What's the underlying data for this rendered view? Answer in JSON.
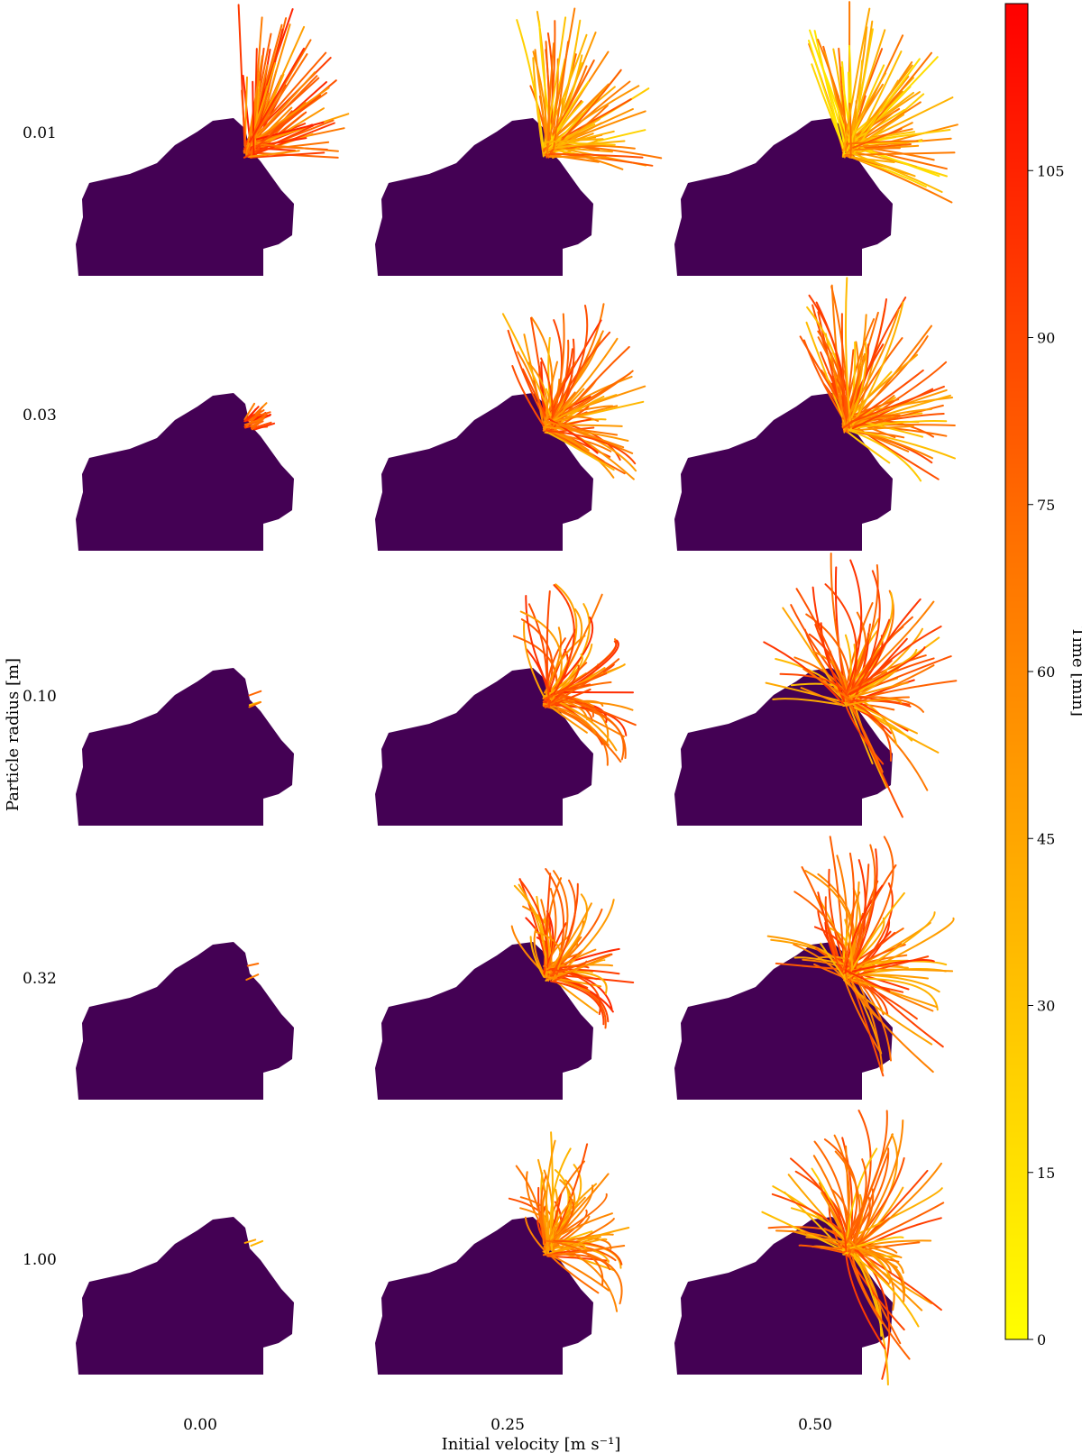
{
  "chart_data": {
    "type": "scatter",
    "title": "",
    "xlabel": "Initial velocity [m s⁻¹]",
    "ylabel": "Particle radius [m]",
    "column_labels": [
      "0.00",
      "0.25",
      "0.50"
    ],
    "row_labels": [
      "0.01",
      "0.03",
      "0.10",
      "0.32",
      "1.00"
    ],
    "colorbar": {
      "label": "Time [min]",
      "ticks": [
        "0",
        "15",
        "30",
        "45",
        "60",
        "75",
        "90",
        "105"
      ],
      "range": [
        0,
        120
      ],
      "colormap": [
        "#ffff00",
        "#ffd000",
        "#ffa000",
        "#ff7000",
        "#ff3800",
        "#ff0000"
      ]
    },
    "body_color": "#440154",
    "panels": [
      {
        "radius": "0.01",
        "velocity": "0.00",
        "spread": 1.0,
        "length": 1.0,
        "bend": 0.0,
        "count": 70,
        "color_bias": 0.55
      },
      {
        "radius": "0.01",
        "velocity": "0.25",
        "spread": 1.2,
        "length": 1.0,
        "bend": 0.2,
        "count": 70,
        "color_bias": 0.25
      },
      {
        "radius": "0.01",
        "velocity": "0.50",
        "spread": 1.3,
        "length": 1.0,
        "bend": 0.1,
        "count": 80,
        "color_bias": 0.15
      },
      {
        "radius": "0.03",
        "velocity": "0.00",
        "spread": 0.8,
        "length": 0.12,
        "bend": 0.0,
        "count": 30,
        "color_bias": 0.7
      },
      {
        "radius": "0.03",
        "velocity": "0.25",
        "spread": 1.5,
        "length": 0.9,
        "bend": 0.6,
        "count": 70,
        "color_bias": 0.45
      },
      {
        "radius": "0.03",
        "velocity": "0.50",
        "spread": 1.5,
        "length": 1.0,
        "bend": 0.4,
        "count": 80,
        "color_bias": 0.35
      },
      {
        "radius": "0.10",
        "velocity": "0.00",
        "spread": 0.1,
        "length": 0.06,
        "bend": 0.0,
        "count": 3,
        "color_bias": 0.1
      },
      {
        "radius": "0.10",
        "velocity": "0.25",
        "spread": 1.6,
        "length": 0.8,
        "bend": 1.2,
        "count": 60,
        "color_bias": 0.5
      },
      {
        "radius": "0.10",
        "velocity": "0.50",
        "spread": 2.2,
        "length": 1.0,
        "bend": 0.9,
        "count": 80,
        "color_bias": 0.45
      },
      {
        "radius": "0.32",
        "velocity": "0.00",
        "spread": 0.1,
        "length": 0.05,
        "bend": 0.0,
        "count": 2,
        "color_bias": 0.1
      },
      {
        "radius": "0.32",
        "velocity": "0.25",
        "spread": 1.6,
        "length": 0.75,
        "bend": 1.3,
        "count": 60,
        "color_bias": 0.5
      },
      {
        "radius": "0.32",
        "velocity": "0.50",
        "spread": 2.2,
        "length": 1.0,
        "bend": 1.0,
        "count": 80,
        "color_bias": 0.45
      },
      {
        "radius": "1.00",
        "velocity": "0.00",
        "spread": 0.1,
        "length": 0.05,
        "bend": 0.0,
        "count": 2,
        "color_bias": 0.1
      },
      {
        "radius": "1.00",
        "velocity": "0.25",
        "spread": 1.6,
        "length": 0.75,
        "bend": 1.3,
        "count": 60,
        "color_bias": 0.4
      },
      {
        "radius": "1.00",
        "velocity": "0.50",
        "spread": 2.3,
        "length": 1.0,
        "bend": 1.0,
        "count": 80,
        "color_bias": 0.35
      }
    ]
  }
}
